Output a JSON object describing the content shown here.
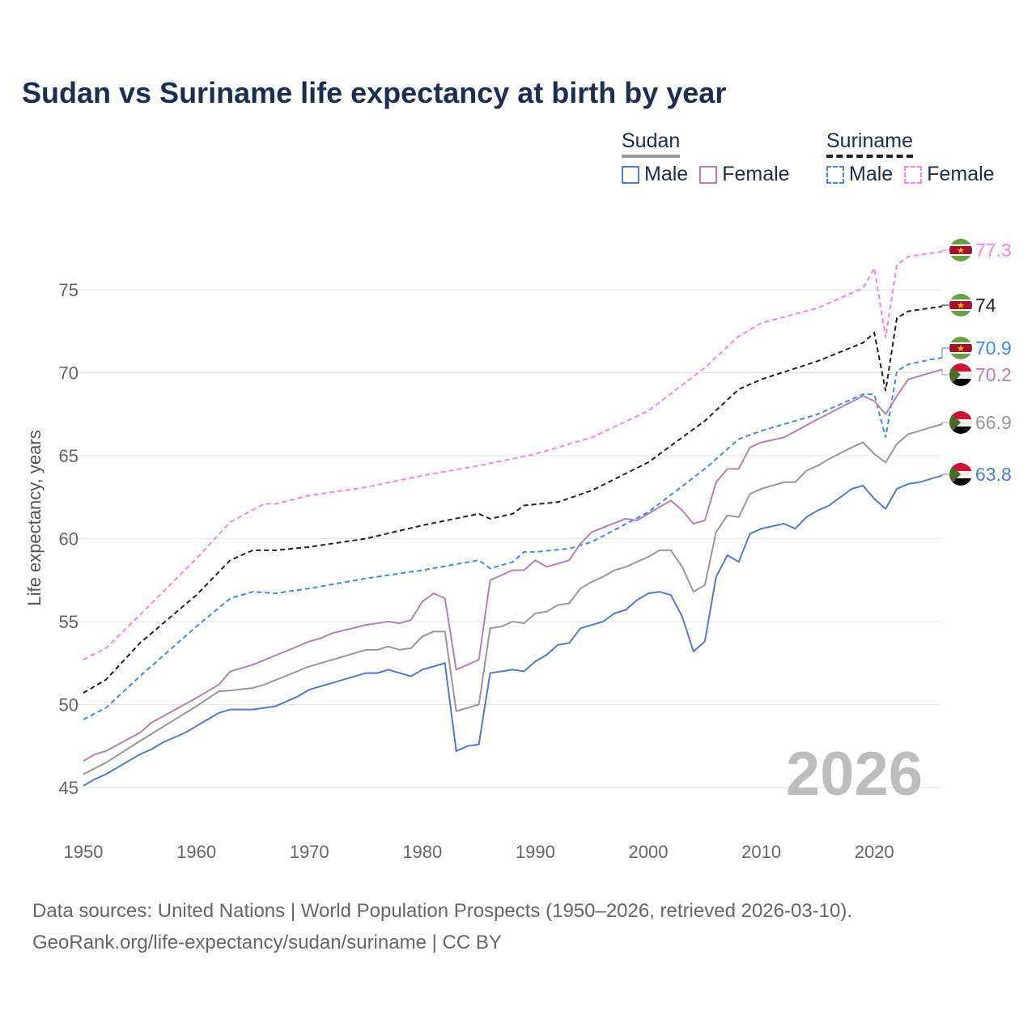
{
  "title": "Sudan vs Suriname life expectancy at birth by year",
  "legend": {
    "groups": [
      {
        "name": "Sudan",
        "items": [
          {
            "label": "Male",
            "color": "#4f7ccc",
            "dashed": false
          },
          {
            "label": "Female",
            "color": "#b87fb8",
            "dashed": false
          }
        ],
        "total_color": "#999999"
      },
      {
        "name": "Suriname",
        "items": [
          {
            "label": "Male",
            "color": "#3d8af7",
            "dashed": true
          },
          {
            "label": "Female",
            "color": "#ff80ee",
            "dashed": true
          }
        ],
        "total_color": "#222222"
      }
    ]
  },
  "watermark_year": "2026",
  "source": {
    "line1": "Data sources: United Nations | World Population Prospects (1950–2026, retrieved 2026-03-10).",
    "line2": "GeoRank.org/life-expectancy/sudan/suriname | CC BY"
  },
  "chart_data": {
    "type": "line",
    "title": "Sudan vs Suriname life expectancy at birth by year",
    "xlabel": "",
    "ylabel": "Life expectancy, years",
    "xlim": [
      1950,
      2026
    ],
    "ylim": [
      43,
      78
    ],
    "xticks": [
      1950,
      1960,
      1970,
      1980,
      1990,
      2000,
      2010,
      2020
    ],
    "yticks": [
      45,
      50,
      55,
      60,
      65,
      70,
      75
    ],
    "grid": true,
    "legend_position": "top-right",
    "series": [
      {
        "name": "Suriname Female",
        "country": "Suriname",
        "color": "#ff80ee",
        "dashed": true,
        "end_label": "77.3",
        "points": [
          [
            1950,
            52.7
          ],
          [
            1952,
            53.4
          ],
          [
            1955,
            55.4
          ],
          [
            1960,
            58.8
          ],
          [
            1963,
            61
          ],
          [
            1966,
            62.1
          ],
          [
            1967,
            62.1
          ],
          [
            1970,
            62.6
          ],
          [
            1975,
            63.1
          ],
          [
            1980,
            63.8
          ],
          [
            1985,
            64.4
          ],
          [
            1990,
            65.1
          ],
          [
            1995,
            66.1
          ],
          [
            2000,
            67.7
          ],
          [
            2005,
            70.3
          ],
          [
            2008,
            72.2
          ],
          [
            2010,
            73
          ],
          [
            2015,
            73.9
          ],
          [
            2019,
            75.1
          ],
          [
            2020,
            76.3
          ],
          [
            2021,
            72.1
          ],
          [
            2022,
            76.5
          ],
          [
            2023,
            77
          ],
          [
            2026,
            77.3
          ]
        ]
      },
      {
        "name": "Suriname",
        "country": "Suriname",
        "color": "#222222",
        "dashed": true,
        "end_label": "74",
        "points": [
          [
            1950,
            50.7
          ],
          [
            1952,
            51.5
          ],
          [
            1955,
            53.7
          ],
          [
            1960,
            56.6
          ],
          [
            1963,
            58.7
          ],
          [
            1965,
            59.3
          ],
          [
            1967,
            59.3
          ],
          [
            1970,
            59.5
          ],
          [
            1975,
            60
          ],
          [
            1980,
            60.8
          ],
          [
            1985,
            61.5
          ],
          [
            1986,
            61.2
          ],
          [
            1988,
            61.5
          ],
          [
            1989,
            62
          ],
          [
            1992,
            62.2
          ],
          [
            1995,
            62.9
          ],
          [
            2000,
            64.6
          ],
          [
            2005,
            67.1
          ],
          [
            2008,
            69
          ],
          [
            2010,
            69.6
          ],
          [
            2015,
            70.7
          ],
          [
            2019,
            71.8
          ],
          [
            2020,
            72.4
          ],
          [
            2021,
            68.9
          ],
          [
            2022,
            73.3
          ],
          [
            2023,
            73.7
          ],
          [
            2026,
            74
          ]
        ]
      },
      {
        "name": "Suriname Male",
        "country": "Suriname",
        "color": "#3d8af7",
        "dashed": true,
        "end_label": "70.9",
        "points": [
          [
            1950,
            49.1
          ],
          [
            1952,
            49.8
          ],
          [
            1955,
            51.7
          ],
          [
            1960,
            54.7
          ],
          [
            1963,
            56.4
          ],
          [
            1965,
            56.8
          ],
          [
            1967,
            56.7
          ],
          [
            1970,
            57
          ],
          [
            1975,
            57.6
          ],
          [
            1980,
            58.1
          ],
          [
            1985,
            58.7
          ],
          [
            1986,
            58.2
          ],
          [
            1988,
            58.6
          ],
          [
            1989,
            59.2
          ],
          [
            1990,
            59.2
          ],
          [
            1993,
            59.4
          ],
          [
            1995,
            59.8
          ],
          [
            2000,
            61.6
          ],
          [
            2005,
            64.2
          ],
          [
            2008,
            66
          ],
          [
            2010,
            66.5
          ],
          [
            2015,
            67.5
          ],
          [
            2019,
            68.7
          ],
          [
            2020,
            68.7
          ],
          [
            2021,
            66.1
          ],
          [
            2022,
            70.1
          ],
          [
            2023,
            70.5
          ],
          [
            2025,
            70.8
          ],
          [
            2026,
            70.9
          ]
        ]
      },
      {
        "name": "Sudan Female",
        "country": "Sudan",
        "color": "#b87fb8",
        "dashed": false,
        "end_label": "70.2",
        "points": [
          [
            1950,
            46.6
          ],
          [
            1951,
            47
          ],
          [
            1952,
            47.2
          ],
          [
            1955,
            48.3
          ],
          [
            1956,
            48.9
          ],
          [
            1960,
            50.4
          ],
          [
            1962,
            51.2
          ],
          [
            1963,
            52
          ],
          [
            1965,
            52.4
          ],
          [
            1970,
            53.8
          ],
          [
            1971,
            54
          ],
          [
            1972,
            54.3
          ],
          [
            1975,
            54.8
          ],
          [
            1977,
            55
          ],
          [
            1978,
            54.9
          ],
          [
            1979,
            55.1
          ],
          [
            1980,
            56.2
          ],
          [
            1981,
            56.7
          ],
          [
            1982,
            56.4
          ],
          [
            1983,
            52.1
          ],
          [
            1985,
            52.7
          ],
          [
            1986,
            57.5
          ],
          [
            1988,
            58.1
          ],
          [
            1989,
            58.1
          ],
          [
            1990,
            58.7
          ],
          [
            1991,
            58.3
          ],
          [
            1993,
            58.7
          ],
          [
            1994,
            59.7
          ],
          [
            1995,
            60.4
          ],
          [
            1998,
            61.2
          ],
          [
            1999,
            61.1
          ],
          [
            2000,
            61.5
          ],
          [
            2002,
            62.3
          ],
          [
            2003,
            61.7
          ],
          [
            2004,
            60.9
          ],
          [
            2005,
            61.1
          ],
          [
            2006,
            63.4
          ],
          [
            2007,
            64.2
          ],
          [
            2008,
            64.2
          ],
          [
            2009,
            65.5
          ],
          [
            2010,
            65.8
          ],
          [
            2012,
            66.1
          ],
          [
            2015,
            67.2
          ],
          [
            2019,
            68.6
          ],
          [
            2020,
            68.3
          ],
          [
            2021,
            67.5
          ],
          [
            2022,
            68.6
          ],
          [
            2023,
            69.6
          ],
          [
            2026,
            70.2
          ]
        ]
      },
      {
        "name": "Sudan",
        "country": "Sudan",
        "color": "#999999",
        "dashed": false,
        "end_label": "66.9",
        "points": [
          [
            1950,
            45.8
          ],
          [
            1952,
            46.5
          ],
          [
            1955,
            47.8
          ],
          [
            1960,
            49.9
          ],
          [
            1962,
            50.8
          ],
          [
            1963,
            50.85
          ],
          [
            1965,
            51
          ],
          [
            1966,
            51.2
          ],
          [
            1970,
            52.3
          ],
          [
            1975,
            53.3
          ],
          [
            1976,
            53.3
          ],
          [
            1977,
            53.5
          ],
          [
            1978,
            53.3
          ],
          [
            1979,
            53.4
          ],
          [
            1980,
            54.1
          ],
          [
            1981,
            54.4
          ],
          [
            1982,
            54.4
          ],
          [
            1983,
            49.6
          ],
          [
            1985,
            50
          ],
          [
            1986,
            54.6
          ],
          [
            1987,
            54.7
          ],
          [
            1988,
            55
          ],
          [
            1989,
            54.9
          ],
          [
            1990,
            55.5
          ],
          [
            1991,
            55.6
          ],
          [
            1992,
            56
          ],
          [
            1993,
            56.1
          ],
          [
            1994,
            57
          ],
          [
            1995,
            57.4
          ],
          [
            1996,
            57.7
          ],
          [
            1997,
            58.1
          ],
          [
            1998,
            58.3
          ],
          [
            2000,
            58.9
          ],
          [
            2001,
            59.3
          ],
          [
            2002,
            59.3
          ],
          [
            2003,
            58.3
          ],
          [
            2004,
            56.8
          ],
          [
            2005,
            57.2
          ],
          [
            2006,
            60.4
          ],
          [
            2007,
            61.4
          ],
          [
            2008,
            61.3
          ],
          [
            2009,
            62.7
          ],
          [
            2010,
            63
          ],
          [
            2012,
            63.4
          ],
          [
            2013,
            63.4
          ],
          [
            2014,
            64.1
          ],
          [
            2015,
            64.4
          ],
          [
            2016,
            64.8
          ],
          [
            2018,
            65.5
          ],
          [
            2019,
            65.8
          ],
          [
            2020,
            65.1
          ],
          [
            2021,
            64.6
          ],
          [
            2022,
            65.7
          ],
          [
            2023,
            66.3
          ],
          [
            2026,
            66.9
          ]
        ]
      },
      {
        "name": "Sudan Male",
        "country": "Sudan",
        "color": "#4f7ccc",
        "dashed": false,
        "end_label": "63.8",
        "points": [
          [
            1950,
            45.1
          ],
          [
            1951,
            45.5
          ],
          [
            1952,
            45.8
          ],
          [
            1955,
            47
          ],
          [
            1956,
            47.3
          ],
          [
            1957,
            47.7
          ],
          [
            1959,
            48.3
          ],
          [
            1960,
            48.7
          ],
          [
            1962,
            49.5
          ],
          [
            1963,
            49.7
          ],
          [
            1965,
            49.7
          ],
          [
            1967,
            49.9
          ],
          [
            1968,
            50.2
          ],
          [
            1969,
            50.5
          ],
          [
            1970,
            50.9
          ],
          [
            1975,
            51.9
          ],
          [
            1976,
            51.9
          ],
          [
            1977,
            52.1
          ],
          [
            1978,
            51.9
          ],
          [
            1979,
            51.7
          ],
          [
            1980,
            52.1
          ],
          [
            1982,
            52.5
          ],
          [
            1983,
            47.2
          ],
          [
            1984,
            47.5
          ],
          [
            1985,
            47.6
          ],
          [
            1986,
            51.9
          ],
          [
            1988,
            52.1
          ],
          [
            1989,
            52
          ],
          [
            1990,
            52.6
          ],
          [
            1991,
            53
          ],
          [
            1992,
            53.6
          ],
          [
            1993,
            53.7
          ],
          [
            1994,
            54.6
          ],
          [
            1996,
            55
          ],
          [
            1997,
            55.5
          ],
          [
            1998,
            55.7
          ],
          [
            1999,
            56.3
          ],
          [
            2000,
            56.7
          ],
          [
            2001,
            56.8
          ],
          [
            2002,
            56.6
          ],
          [
            2003,
            55.3
          ],
          [
            2004,
            53.2
          ],
          [
            2005,
            53.8
          ],
          [
            2006,
            57.7
          ],
          [
            2007,
            59
          ],
          [
            2008,
            58.6
          ],
          [
            2009,
            60.3
          ],
          [
            2010,
            60.6
          ],
          [
            2012,
            60.9
          ],
          [
            2013,
            60.6
          ],
          [
            2014,
            61.3
          ],
          [
            2015,
            61.7
          ],
          [
            2016,
            62
          ],
          [
            2017,
            62.5
          ],
          [
            2018,
            63
          ],
          [
            2019,
            63.2
          ],
          [
            2020,
            62.4
          ],
          [
            2021,
            61.8
          ],
          [
            2022,
            63
          ],
          [
            2023,
            63.3
          ],
          [
            2024,
            63.4
          ],
          [
            2026,
            63.8
          ]
        ]
      }
    ]
  }
}
